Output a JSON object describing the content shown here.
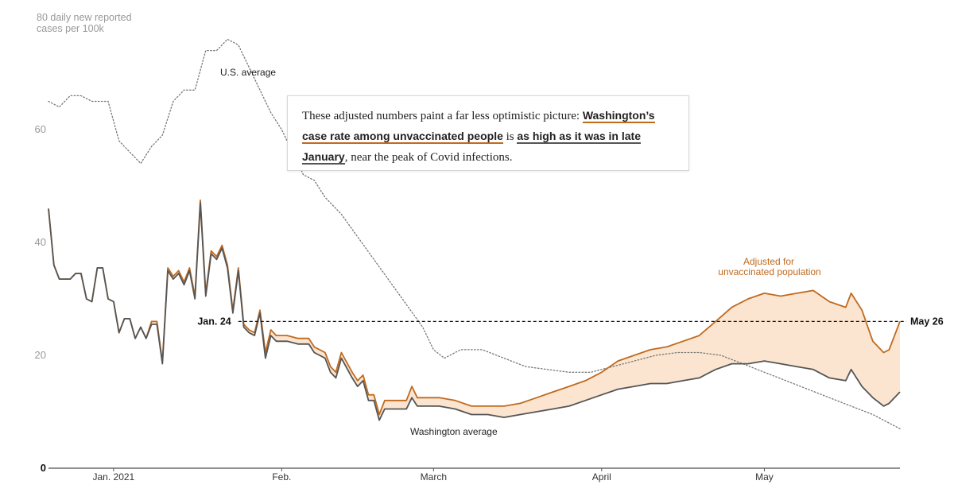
{
  "chart_data": {
    "type": "line",
    "ylabel_lines": [
      "80 daily new reported",
      "cases per 100k"
    ],
    "ylim": [
      0,
      80
    ],
    "yticks": [
      {
        "value": 0,
        "label": "0"
      },
      {
        "value": 20,
        "label": "20"
      },
      {
        "value": 40,
        "label": "40"
      },
      {
        "value": 60,
        "label": "60"
      }
    ],
    "xlim": [
      "2020-12-20",
      "2021-05-26"
    ],
    "xticks": [
      {
        "date": "2021-01-01",
        "label": "Jan. 2021"
      },
      {
        "date": "2021-02-01",
        "label": "Feb."
      },
      {
        "date": "2021-03-01",
        "label": "March"
      },
      {
        "date": "2021-04-01",
        "label": "April"
      },
      {
        "date": "2021-05-01",
        "label": "May"
      }
    ],
    "grid": false,
    "reference_line": {
      "value": 26,
      "start": "2021-01-24",
      "end": "2021-05-26",
      "start_label": "Jan. 24",
      "end_label": "May 26"
    },
    "series": [
      {
        "name": "U.S. average",
        "color": "#777777",
        "style": "dotted",
        "points": [
          [
            "2020-12-20",
            65
          ],
          [
            "2020-12-22",
            64
          ],
          [
            "2020-12-24",
            66
          ],
          [
            "2020-12-26",
            66
          ],
          [
            "2020-12-28",
            65
          ],
          [
            "2020-12-31",
            65
          ],
          [
            "2021-01-02",
            58
          ],
          [
            "2021-01-04",
            56
          ],
          [
            "2021-01-06",
            54
          ],
          [
            "2021-01-08",
            57
          ],
          [
            "2021-01-10",
            59
          ],
          [
            "2021-01-12",
            65
          ],
          [
            "2021-01-14",
            67
          ],
          [
            "2021-01-16",
            67
          ],
          [
            "2021-01-18",
            74
          ],
          [
            "2021-01-20",
            74
          ],
          [
            "2021-01-22",
            76
          ],
          [
            "2021-01-24",
            75
          ],
          [
            "2021-01-26",
            71
          ],
          [
            "2021-01-28",
            67
          ],
          [
            "2021-01-30",
            63
          ],
          [
            "2021-02-01",
            60
          ],
          [
            "2021-02-03",
            56
          ],
          [
            "2021-02-05",
            52
          ],
          [
            "2021-02-07",
            51
          ],
          [
            "2021-02-09",
            48
          ],
          [
            "2021-02-12",
            45
          ],
          [
            "2021-02-15",
            41
          ],
          [
            "2021-02-18",
            37
          ],
          [
            "2021-02-21",
            33
          ],
          [
            "2021-02-24",
            29
          ],
          [
            "2021-02-27",
            25
          ],
          [
            "2021-03-01",
            21
          ],
          [
            "2021-03-03",
            19.5
          ],
          [
            "2021-03-06",
            21
          ],
          [
            "2021-03-10",
            21
          ],
          [
            "2021-03-14",
            19.5
          ],
          [
            "2021-03-18",
            18
          ],
          [
            "2021-03-22",
            17.5
          ],
          [
            "2021-03-26",
            17
          ],
          [
            "2021-03-30",
            17
          ],
          [
            "2021-04-03",
            18
          ],
          [
            "2021-04-07",
            19
          ],
          [
            "2021-04-11",
            20
          ],
          [
            "2021-04-15",
            20.5
          ],
          [
            "2021-04-19",
            20.5
          ],
          [
            "2021-04-23",
            20
          ],
          [
            "2021-04-27",
            18.5
          ],
          [
            "2021-05-01",
            17
          ],
          [
            "2021-05-05",
            15.5
          ],
          [
            "2021-05-09",
            14
          ],
          [
            "2021-05-13",
            12.5
          ],
          [
            "2021-05-17",
            11
          ],
          [
            "2021-05-21",
            9.5
          ],
          [
            "2021-05-26",
            7
          ]
        ]
      },
      {
        "name": "Washington average",
        "color": "#555555",
        "style": "solid",
        "points": [
          [
            "2020-12-20",
            46
          ],
          [
            "2020-12-21",
            36
          ],
          [
            "2020-12-22",
            33.5
          ],
          [
            "2020-12-24",
            33.5
          ],
          [
            "2020-12-25",
            34.5
          ],
          [
            "2020-12-26",
            34.5
          ],
          [
            "2020-12-27",
            30
          ],
          [
            "2020-12-28",
            29.5
          ],
          [
            "2020-12-29",
            35.5
          ],
          [
            "2020-12-30",
            35.5
          ],
          [
            "2020-12-31",
            30
          ],
          [
            "2021-01-01",
            29.5
          ],
          [
            "2021-01-02",
            24
          ],
          [
            "2021-01-03",
            26.5
          ],
          [
            "2021-01-04",
            26.5
          ],
          [
            "2021-01-05",
            23
          ],
          [
            "2021-01-06",
            25
          ],
          [
            "2021-01-07",
            23
          ],
          [
            "2021-01-08",
            25.5
          ],
          [
            "2021-01-09",
            25.5
          ],
          [
            "2021-01-10",
            18.5
          ],
          [
            "2021-01-11",
            35
          ],
          [
            "2021-01-12",
            33.5
          ],
          [
            "2021-01-13",
            34.5
          ],
          [
            "2021-01-14",
            32.5
          ],
          [
            "2021-01-15",
            35
          ],
          [
            "2021-01-16",
            30
          ],
          [
            "2021-01-17",
            47
          ],
          [
            "2021-01-18",
            30.5
          ],
          [
            "2021-01-19",
            38
          ],
          [
            "2021-01-20",
            37
          ],
          [
            "2021-01-21",
            39
          ],
          [
            "2021-01-22",
            35.5
          ],
          [
            "2021-01-23",
            27.5
          ],
          [
            "2021-01-24",
            35
          ],
          [
            "2021-01-25",
            25
          ],
          [
            "2021-01-26",
            24
          ],
          [
            "2021-01-27",
            23.5
          ],
          [
            "2021-01-28",
            27.5
          ],
          [
            "2021-01-29",
            19.5
          ],
          [
            "2021-01-30",
            23.5
          ],
          [
            "2021-01-31",
            22.5
          ],
          [
            "2021-02-02",
            22.5
          ],
          [
            "2021-02-04",
            22
          ],
          [
            "2021-02-06",
            22
          ],
          [
            "2021-02-07",
            20.5
          ],
          [
            "2021-02-09",
            19.5
          ],
          [
            "2021-02-10",
            17
          ],
          [
            "2021-02-11",
            16
          ],
          [
            "2021-02-12",
            19.5
          ],
          [
            "2021-02-14",
            16
          ],
          [
            "2021-02-15",
            14.5
          ],
          [
            "2021-02-16",
            15.5
          ],
          [
            "2021-02-17",
            12
          ],
          [
            "2021-02-18",
            12
          ],
          [
            "2021-02-19",
            8.5
          ],
          [
            "2021-02-20",
            10.5
          ],
          [
            "2021-02-22",
            10.5
          ],
          [
            "2021-02-24",
            10.5
          ],
          [
            "2021-02-25",
            12.5
          ],
          [
            "2021-02-26",
            11
          ],
          [
            "2021-02-28",
            11
          ],
          [
            "2021-03-02",
            11
          ],
          [
            "2021-03-05",
            10.5
          ],
          [
            "2021-03-08",
            9.5
          ],
          [
            "2021-03-11",
            9.5
          ],
          [
            "2021-03-14",
            9
          ],
          [
            "2021-03-17",
            9.5
          ],
          [
            "2021-03-20",
            10
          ],
          [
            "2021-03-23",
            10.5
          ],
          [
            "2021-03-26",
            11
          ],
          [
            "2021-03-29",
            12
          ],
          [
            "2021-04-01",
            13
          ],
          [
            "2021-04-04",
            14
          ],
          [
            "2021-04-07",
            14.5
          ],
          [
            "2021-04-10",
            15
          ],
          [
            "2021-04-13",
            15
          ],
          [
            "2021-04-16",
            15.5
          ],
          [
            "2021-04-19",
            16
          ],
          [
            "2021-04-22",
            17.5
          ],
          [
            "2021-04-25",
            18.5
          ],
          [
            "2021-04-28",
            18.5
          ],
          [
            "2021-05-01",
            19
          ],
          [
            "2021-05-04",
            18.5
          ],
          [
            "2021-05-07",
            18
          ],
          [
            "2021-05-10",
            17.5
          ],
          [
            "2021-05-13",
            16
          ],
          [
            "2021-05-16",
            15.5
          ],
          [
            "2021-05-17",
            17.5
          ],
          [
            "2021-05-19",
            14.5
          ],
          [
            "2021-05-21",
            12.5
          ],
          [
            "2021-05-23",
            11
          ],
          [
            "2021-05-24",
            11.5
          ],
          [
            "2021-05-26",
            13.5
          ]
        ]
      },
      {
        "name": "Adjusted for unvaccinated population",
        "label_lines": [
          "Adjusted for",
          "unvaccinated population"
        ],
        "color": "#c06a1e",
        "fill": "#fbe5d0",
        "style": "solid",
        "points": [
          [
            "2020-12-20",
            46
          ],
          [
            "2020-12-21",
            36
          ],
          [
            "2020-12-22",
            33.5
          ],
          [
            "2020-12-24",
            33.5
          ],
          [
            "2020-12-25",
            34.5
          ],
          [
            "2020-12-26",
            34.5
          ],
          [
            "2020-12-27",
            30
          ],
          [
            "2020-12-28",
            29.5
          ],
          [
            "2020-12-29",
            35.5
          ],
          [
            "2020-12-30",
            35.5
          ],
          [
            "2020-12-31",
            30
          ],
          [
            "2021-01-01",
            29.5
          ],
          [
            "2021-01-02",
            24
          ],
          [
            "2021-01-03",
            26.5
          ],
          [
            "2021-01-04",
            26.5
          ],
          [
            "2021-01-05",
            23
          ],
          [
            "2021-01-06",
            25
          ],
          [
            "2021-01-07",
            23
          ],
          [
            "2021-01-08",
            26
          ],
          [
            "2021-01-09",
            26
          ],
          [
            "2021-01-10",
            18.8
          ],
          [
            "2021-01-11",
            35.5
          ],
          [
            "2021-01-12",
            34
          ],
          [
            "2021-01-13",
            35
          ],
          [
            "2021-01-14",
            33
          ],
          [
            "2021-01-15",
            35.5
          ],
          [
            "2021-01-16",
            30.5
          ],
          [
            "2021-01-17",
            47.5
          ],
          [
            "2021-01-18",
            31
          ],
          [
            "2021-01-19",
            38.5
          ],
          [
            "2021-01-20",
            37.5
          ],
          [
            "2021-01-21",
            39.5
          ],
          [
            "2021-01-22",
            36
          ],
          [
            "2021-01-23",
            28
          ],
          [
            "2021-01-24",
            35.5
          ],
          [
            "2021-01-25",
            25.5
          ],
          [
            "2021-01-26",
            24.5
          ],
          [
            "2021-01-27",
            24
          ],
          [
            "2021-01-28",
            28
          ],
          [
            "2021-01-29",
            20.5
          ],
          [
            "2021-01-30",
            24.5
          ],
          [
            "2021-01-31",
            23.5
          ],
          [
            "2021-02-02",
            23.5
          ],
          [
            "2021-02-04",
            23
          ],
          [
            "2021-02-06",
            23
          ],
          [
            "2021-02-07",
            21.5
          ],
          [
            "2021-02-09",
            20.5
          ],
          [
            "2021-02-10",
            18
          ],
          [
            "2021-02-11",
            17
          ],
          [
            "2021-02-12",
            20.5
          ],
          [
            "2021-02-14",
            17
          ],
          [
            "2021-02-15",
            15.5
          ],
          [
            "2021-02-16",
            16.5
          ],
          [
            "2021-02-17",
            13
          ],
          [
            "2021-02-18",
            13
          ],
          [
            "2021-02-19",
            9.5
          ],
          [
            "2021-02-20",
            12
          ],
          [
            "2021-02-22",
            12
          ],
          [
            "2021-02-24",
            12
          ],
          [
            "2021-02-25",
            14.5
          ],
          [
            "2021-02-26",
            12.5
          ],
          [
            "2021-02-28",
            12.5
          ],
          [
            "2021-03-02",
            12.5
          ],
          [
            "2021-03-05",
            12
          ],
          [
            "2021-03-08",
            11
          ],
          [
            "2021-03-11",
            11
          ],
          [
            "2021-03-14",
            11
          ],
          [
            "2021-03-17",
            11.5
          ],
          [
            "2021-03-20",
            12.5
          ],
          [
            "2021-03-23",
            13.5
          ],
          [
            "2021-03-26",
            14.5
          ],
          [
            "2021-03-29",
            15.5
          ],
          [
            "2021-04-01",
            17
          ],
          [
            "2021-04-04",
            19
          ],
          [
            "2021-04-07",
            20
          ],
          [
            "2021-04-10",
            21
          ],
          [
            "2021-04-13",
            21.5
          ],
          [
            "2021-04-16",
            22.5
          ],
          [
            "2021-04-19",
            23.5
          ],
          [
            "2021-04-22",
            26
          ],
          [
            "2021-04-25",
            28.5
          ],
          [
            "2021-04-28",
            30
          ],
          [
            "2021-05-01",
            31
          ],
          [
            "2021-05-04",
            30.5
          ],
          [
            "2021-05-07",
            31
          ],
          [
            "2021-05-10",
            31.5
          ],
          [
            "2021-05-13",
            29.5
          ],
          [
            "2021-05-16",
            28.5
          ],
          [
            "2021-05-17",
            31
          ],
          [
            "2021-05-19",
            28
          ],
          [
            "2021-05-21",
            22.5
          ],
          [
            "2021-05-23",
            20.5
          ],
          [
            "2021-05-24",
            21
          ],
          [
            "2021-05-26",
            26
          ]
        ]
      }
    ]
  },
  "callout": {
    "prefix": "These adjusted numbers paint a far less optimistic picture: ",
    "highlight1": "Washington’s case rate among unvaccinated people",
    "middle": " is ",
    "highlight2": "as high as it was in late January",
    "suffix": ", near the peak of Covid infections."
  }
}
